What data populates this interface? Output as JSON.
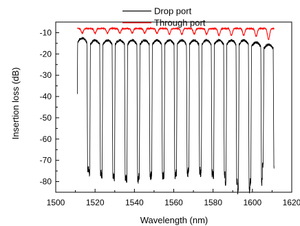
{
  "chart_data": {
    "type": "line",
    "xlabel": "Wavelength (nm)",
    "ylabel": "Insertion loss (dB)",
    "xlim": [
      1500,
      1620
    ],
    "ylim": [
      -85,
      -5
    ],
    "x_ticks": [
      1500,
      1520,
      1540,
      1560,
      1580,
      1600,
      1620
    ],
    "y_ticks": [
      -10,
      -20,
      -30,
      -40,
      -50,
      -60,
      -70,
      -80
    ],
    "grid": false,
    "legend_position": "top-center",
    "channel_centers_nm": [
      1513.5,
      1520.0,
      1526.3,
      1532.6,
      1538.9,
      1545.2,
      1551.5,
      1557.8,
      1564.1,
      1570.4,
      1576.7,
      1583.0,
      1589.3,
      1595.6,
      1601.9,
      1608.2
    ],
    "series": [
      {
        "name": "Drop port",
        "color": "#000000",
        "x_range": [
          1511,
          1611
        ],
        "peak_values": [
          -12,
          -13,
          -13,
          -13,
          -13,
          -13,
          -13,
          -13,
          -13,
          -13,
          -13,
          -13,
          -13,
          -13,
          -14,
          -15
        ],
        "floor_values": [
          -72,
          -74,
          -75,
          -76,
          -77,
          -76,
          -75,
          -75,
          -74,
          -73,
          -74,
          -75,
          -78,
          -82,
          -78,
          -70
        ],
        "floor_noise_db": 4
      },
      {
        "name": "Through port",
        "color": "#ff0000",
        "x_range": [
          1511,
          1611
        ],
        "baseline_value": -7.8,
        "notch_values": [
          -10,
          -10,
          -10,
          -10,
          -10,
          -10,
          -10,
          -10.5,
          -10.5,
          -10.5,
          -10.5,
          -11,
          -11,
          -11,
          -11.5,
          -13
        ]
      }
    ]
  }
}
